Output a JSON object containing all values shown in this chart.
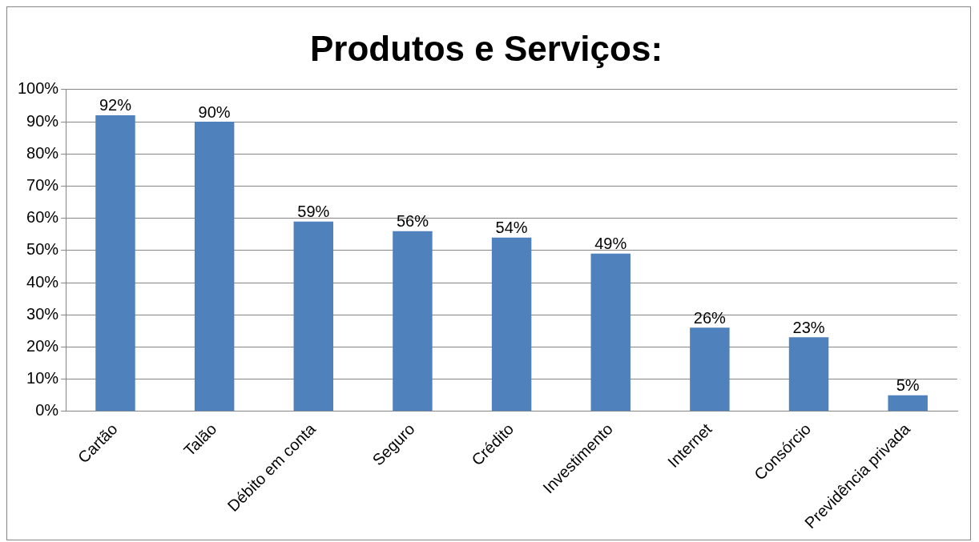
{
  "chart_data": {
    "type": "bar",
    "title": "Produtos e Serviços:",
    "categories": [
      "Cartão",
      "Talão",
      "Débito em conta",
      "Seguro",
      "Crédito",
      "Investimento",
      "Internet",
      "Consórcio",
      "Previdência privada"
    ],
    "values": [
      92,
      90,
      59,
      56,
      54,
      49,
      26,
      23,
      5
    ],
    "value_labels": [
      "92%",
      "90%",
      "59%",
      "56%",
      "54%",
      "49%",
      "26%",
      "23%",
      "5%"
    ],
    "color": "#4f81bd",
    "ylim": [
      0,
      100
    ],
    "yticks": [
      {
        "value": 0,
        "label": "0%"
      },
      {
        "value": 10,
        "label": "10%"
      },
      {
        "value": 20,
        "label": "20%"
      },
      {
        "value": 30,
        "label": "30%"
      },
      {
        "value": 40,
        "label": "40%"
      },
      {
        "value": 50,
        "label": "50%"
      },
      {
        "value": 60,
        "label": "60%"
      },
      {
        "value": 70,
        "label": "70%"
      },
      {
        "value": 80,
        "label": "80%"
      },
      {
        "value": 90,
        "label": "90%"
      },
      {
        "value": 100,
        "label": "100%"
      }
    ],
    "grid": "y"
  }
}
